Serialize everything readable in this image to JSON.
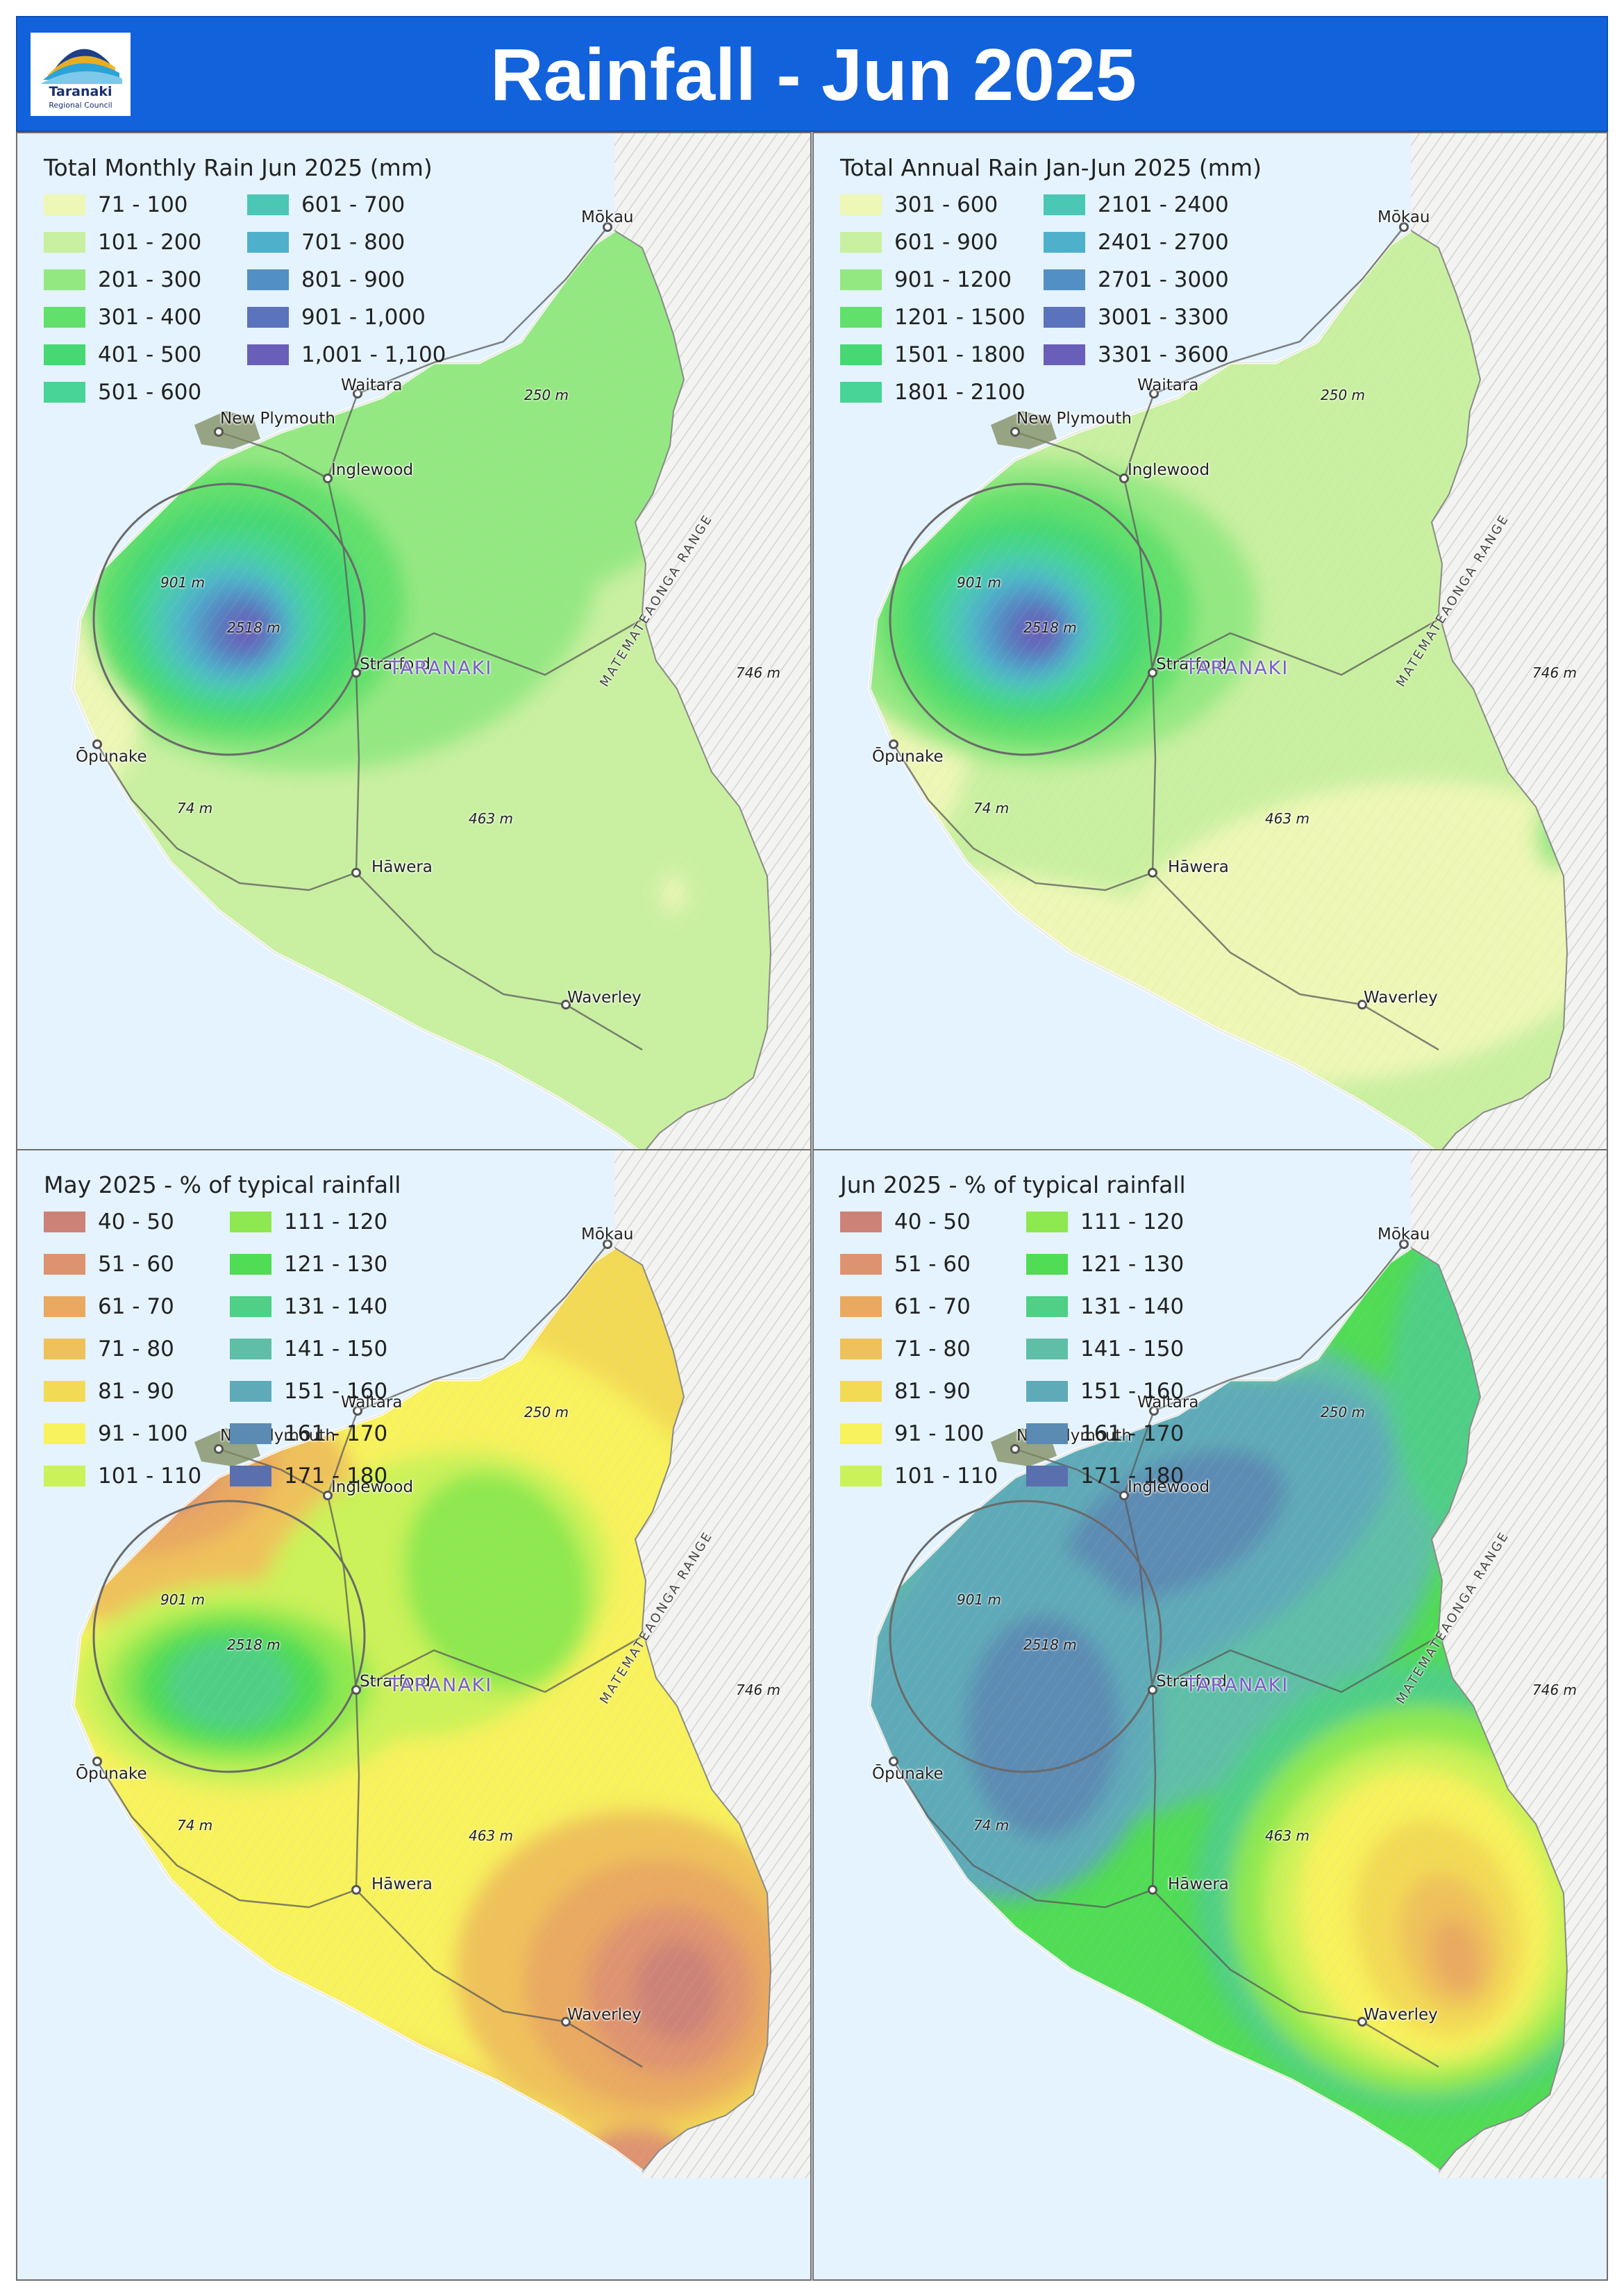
{
  "header": {
    "title": "Rainfall - Jun 2025",
    "logo": {
      "line1": "Taranaki",
      "line2": "Regional Council"
    },
    "background_color": "#1262dc"
  },
  "map_labels": {
    "places": [
      "Mōkau",
      "Waitara",
      "New Plymouth",
      "Inglewood",
      "Stratford",
      "Ōpunake",
      "Hāwera",
      "Waverley"
    ],
    "elevations": [
      "250 m",
      "901 m",
      "2518 m",
      "746 m",
      "74 m",
      "463 m"
    ],
    "region": "TARANAKI",
    "range": "MATEMATEAONGA RANGE"
  },
  "panels": [
    {
      "id": "monthly",
      "legend_title": "Total Monthly Rain Jun 2025 (mm)",
      "legend": [
        {
          "label": "71 - 100",
          "color": "#eef7b6"
        },
        {
          "label": "101 - 200",
          "color": "#c9f0a0"
        },
        {
          "label": "201 - 300",
          "color": "#94e882"
        },
        {
          "label": "301 - 400",
          "color": "#62e06c"
        },
        {
          "label": "401 - 500",
          "color": "#47d873"
        },
        {
          "label": "501 - 600",
          "color": "#47d496"
        },
        {
          "label": "601 - 700",
          "color": "#4cc7b5"
        },
        {
          "label": "701 - 800",
          "color": "#4fb0cc"
        },
        {
          "label": "801 - 900",
          "color": "#528fc4"
        },
        {
          "label": "901 - 1,000",
          "color": "#5b72bc"
        },
        {
          "label": "1,001 - 1,100",
          "color": "#6a5fb8"
        }
      ]
    },
    {
      "id": "annual",
      "legend_title": "Total Annual Rain Jan-Jun 2025 (mm)",
      "legend": [
        {
          "label": "301 - 600",
          "color": "#eef7b6"
        },
        {
          "label": "601 - 900",
          "color": "#c9f0a0"
        },
        {
          "label": "901 - 1200",
          "color": "#94e882"
        },
        {
          "label": "1201 - 1500",
          "color": "#62e06c"
        },
        {
          "label": "1501 - 1800",
          "color": "#47d873"
        },
        {
          "label": "1801 - 2100",
          "color": "#47d496"
        },
        {
          "label": "2101 - 2400",
          "color": "#4cc7b5"
        },
        {
          "label": "2401 - 2700",
          "color": "#4fb0cc"
        },
        {
          "label": "2701 - 3000",
          "color": "#528fc4"
        },
        {
          "label": "3001 - 3300",
          "color": "#5b72bc"
        },
        {
          "label": "3301 - 3600",
          "color": "#6a5fb8"
        }
      ]
    },
    {
      "id": "may-percent",
      "legend_title": "May 2025 - % of typical rainfall",
      "legend": [
        {
          "label": "40 - 50",
          "color": "#cc8277"
        },
        {
          "label": "51 - 60",
          "color": "#de9370"
        },
        {
          "label": "61 - 70",
          "color": "#e9a960"
        },
        {
          "label": "71 - 80",
          "color": "#efc15a"
        },
        {
          "label": "81 - 90",
          "color": "#f3da55"
        },
        {
          "label": "91 - 100",
          "color": "#f8f25c"
        },
        {
          "label": "101 - 110",
          "color": "#cbf258"
        },
        {
          "label": "111 - 120",
          "color": "#8ee84f"
        },
        {
          "label": "121 - 130",
          "color": "#50dc55"
        },
        {
          "label": "131 - 140",
          "color": "#50cf86"
        },
        {
          "label": "141 - 150",
          "color": "#5fbfa6"
        },
        {
          "label": "151 - 160",
          "color": "#5faab8"
        },
        {
          "label": "161 - 170",
          "color": "#5b8bb3"
        },
        {
          "label": "171 - 180",
          "color": "#5a6fae"
        }
      ]
    },
    {
      "id": "jun-percent",
      "legend_title": "Jun 2025 - % of typical rainfall",
      "legend": [
        {
          "label": "40 - 50",
          "color": "#cc8277"
        },
        {
          "label": "51 - 60",
          "color": "#de9370"
        },
        {
          "label": "61 - 70",
          "color": "#e9a960"
        },
        {
          "label": "71 - 80",
          "color": "#efc15a"
        },
        {
          "label": "81 - 90",
          "color": "#f3da55"
        },
        {
          "label": "91 - 100",
          "color": "#f8f25c"
        },
        {
          "label": "101 - 110",
          "color": "#cbf258"
        },
        {
          "label": "111 - 120",
          "color": "#8ee84f"
        },
        {
          "label": "121 - 130",
          "color": "#50dc55"
        },
        {
          "label": "131 - 140",
          "color": "#50cf86"
        },
        {
          "label": "141 - 150",
          "color": "#5fbfa6"
        },
        {
          "label": "151 - 160",
          "color": "#5faab8"
        },
        {
          "label": "161 - 170",
          "color": "#5b8bb3"
        },
        {
          "label": "171 - 180",
          "color": "#5a6fae"
        }
      ]
    }
  ]
}
